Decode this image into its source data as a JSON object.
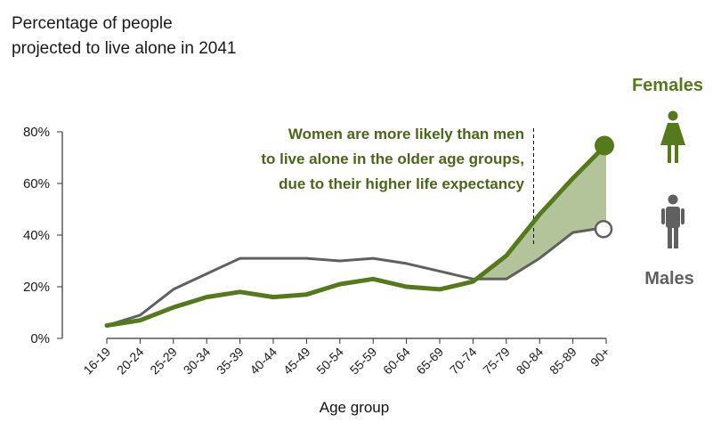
{
  "title_lines": [
    "Percentage of people",
    "projected to live alone in 2041"
  ],
  "annotation_lines": [
    "Women are more likely than men",
    "to live alone in the older age groups,",
    "due to their higher life expectancy"
  ],
  "colors": {
    "females": "#547a1c",
    "males": "#606060",
    "gap_fill": "#b3c49a",
    "axis": "#333333"
  },
  "legend": {
    "females_label": "Females",
    "males_label": "Males",
    "females_icon": "female-person-icon",
    "males_icon": "male-person-icon"
  },
  "chart_data": {
    "type": "line",
    "title": "Percentage of people projected to live alone in 2041",
    "xlabel": "Age group",
    "ylabel": "",
    "categories": [
      "16-19",
      "20-24",
      "25-29",
      "30-34",
      "35-39",
      "40-44",
      "45-49",
      "50-54",
      "55-59",
      "60-64",
      "65-69",
      "70-74",
      "75-79",
      "80-84",
      "85-89",
      "90+"
    ],
    "y_ticks": [
      0,
      20,
      40,
      60,
      80
    ],
    "y_tick_labels": [
      "0%",
      "20%",
      "40%",
      "60%",
      "80%"
    ],
    "ylim": [
      0,
      80
    ],
    "grid": false,
    "series": [
      {
        "name": "Females",
        "values": [
          5,
          7,
          12,
          16,
          18,
          16,
          17,
          21,
          23,
          20,
          19,
          22,
          32,
          48,
          62,
          75
        ]
      },
      {
        "name": "Males",
        "values": [
          5,
          9,
          19,
          25,
          31,
          31,
          31,
          30,
          31,
          29,
          26,
          23,
          23,
          31,
          41,
          43
        ]
      }
    ],
    "shaded_region": {
      "from_category": "70-74",
      "to_category": "90+",
      "between": [
        "Females",
        "Males"
      ]
    },
    "reference_line": {
      "x_between": [
        "80-84",
        "75-79"
      ],
      "style": "dashed"
    }
  }
}
